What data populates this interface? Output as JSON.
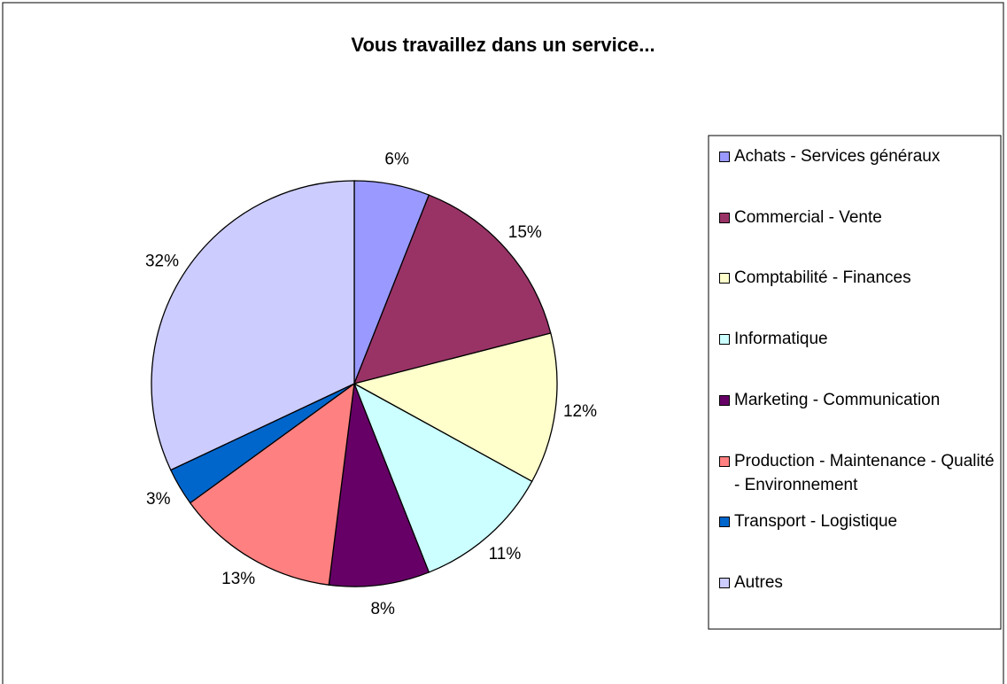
{
  "chart_data": {
    "type": "pie",
    "title": "Vous travaillez dans un service...",
    "categories": [
      "Achats - Services généraux",
      "Commercial - Vente",
      "Comptabilité - Finances",
      "Informatique",
      "Marketing - Communication",
      "Production - Maintenance - Qualité - Environnement",
      "Transport - Logistique",
      "Autres"
    ],
    "values": [
      6,
      15,
      12,
      11,
      8,
      13,
      3,
      32
    ],
    "value_labels": [
      "6%",
      "15%",
      "12%",
      "11%",
      "8%",
      "13%",
      "3%",
      "32%"
    ],
    "colors": [
      "#9999ff",
      "#993366",
      "#ffffcc",
      "#ccffff",
      "#660066",
      "#ff8080",
      "#0066cc",
      "#ccccff"
    ],
    "legend": "right"
  }
}
